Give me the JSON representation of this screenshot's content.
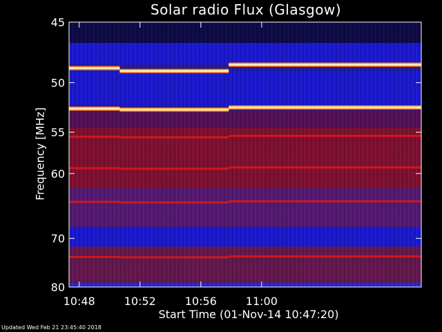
{
  "chart_data": {
    "type": "heatmap",
    "title": "Solar radio Flux (Glasgow)",
    "ylabel": "Frequency [MHz]",
    "xlabel": "Start Time (01-Nov-14 10:47:20)",
    "y_scale": "reciprocal",
    "ylim": [
      45,
      80
    ],
    "y_ticks": [
      "45",
      "50",
      "55",
      "60",
      "70",
      "80"
    ],
    "x_ticks": [
      "10:48",
      "10:52",
      "10:56",
      "11:00"
    ],
    "xlim": [
      "10:47:20",
      "11:10:30"
    ],
    "grid": false,
    "time_segments": [
      {
        "start": "10:47:20",
        "end": "10:50:40"
      },
      {
        "start": "10:50:40",
        "end": "10:57:50"
      },
      {
        "start": "10:57:50",
        "end": "11:10:30"
      }
    ],
    "strong_emission_lines_mhz": [
      48.7,
      52.5
    ],
    "moderate_emission_lines_mhz": [
      55.5,
      59.3,
      64,
      73.5
    ],
    "band_colors": {
      "background": "#2a1a8a",
      "low_freq_band": "#0a0a40",
      "blue_band": "#1a1ad8",
      "red_band": "#8a1028",
      "strong_line": "#ffe8b0",
      "moderate_line": "#d01818"
    }
  },
  "footer": {
    "updated": "Updated Wed Feb 21 23:45:40 2018"
  }
}
